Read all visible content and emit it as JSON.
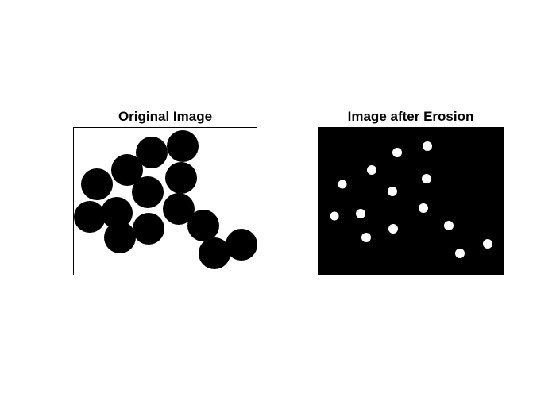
{
  "figure": {
    "background": "#ffffff"
  },
  "panels": [
    {
      "title": "Original Image",
      "image_description_colors": {
        "background": "#ffffff",
        "foreground": "#000000"
      }
    },
    {
      "title": "Image after Erosion",
      "image_description_colors": {
        "background": "#000000",
        "foreground": "#ffffff"
      }
    }
  ]
}
